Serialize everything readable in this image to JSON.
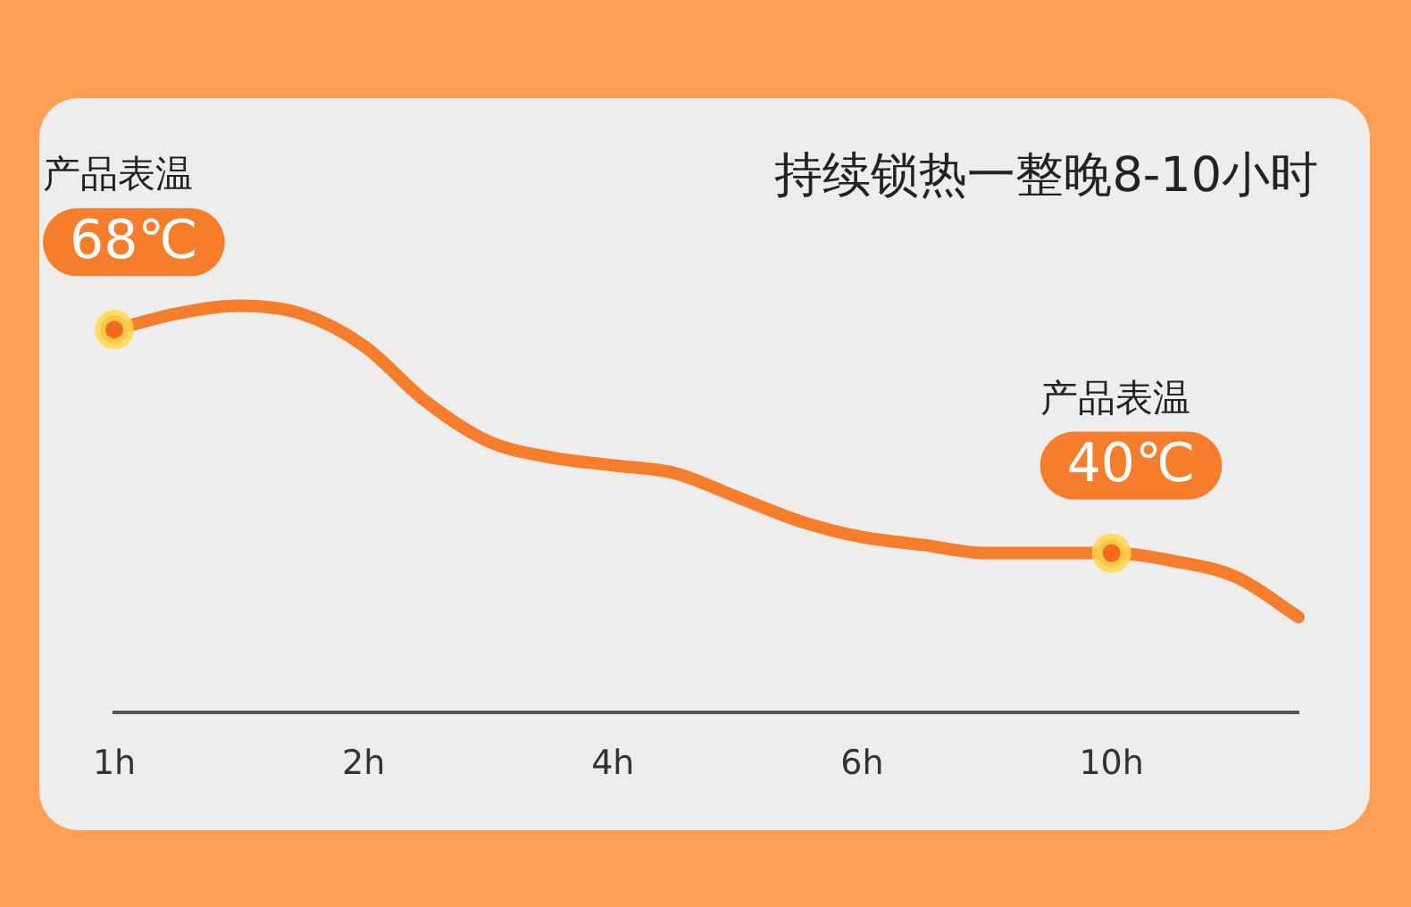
{
  "chart_data": {
    "type": "line",
    "title": "持续锁热一整晚8-10小时",
    "categories": [
      "1h",
      null,
      null,
      null,
      "2h",
      null,
      null,
      null,
      "4h",
      null,
      null,
      null,
      "6h",
      null,
      null,
      null,
      "10h",
      null,
      null,
      null
    ],
    "values": [
      68,
      70,
      71,
      70,
      66,
      59,
      54,
      52,
      51,
      50,
      47,
      44,
      42,
      41,
      40,
      40,
      40,
      39,
      37,
      32
    ],
    "value_labels": [
      "68℃",
      null,
      null,
      null,
      null,
      null,
      null,
      null,
      null,
      null,
      null,
      null,
      null,
      null,
      null,
      null,
      "40℃",
      null,
      null,
      null
    ],
    "color": "#f57d2c",
    "grid": false,
    "legend": false,
    "annotations": [
      "产品表温",
      "产品表温"
    ]
  }
}
